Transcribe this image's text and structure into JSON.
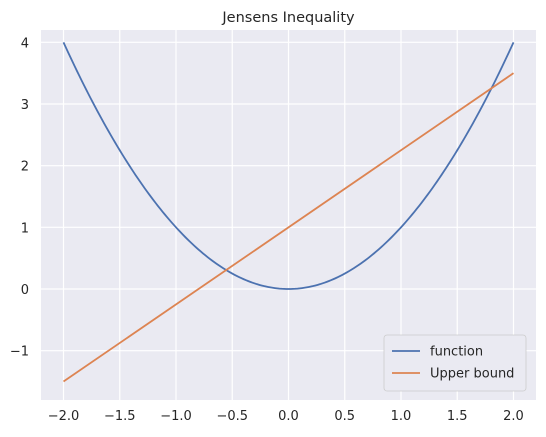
{
  "chart_data": {
    "type": "line",
    "title": "Jensens Inequality",
    "xlabel": "",
    "ylabel": "",
    "xlim": [
      -2.2,
      2.2
    ],
    "ylim": [
      -1.8,
      4.2
    ],
    "xticks": [
      -2.0,
      -1.5,
      -1.0,
      -0.5,
      0.0,
      0.5,
      1.0,
      1.5,
      2.0
    ],
    "xtick_labels": [
      "−2.0",
      "−1.5",
      "−1.0",
      "−0.5",
      "0.0",
      "0.5",
      "1.0",
      "1.5",
      "2.0"
    ],
    "yticks": [
      -1,
      0,
      1,
      2,
      3,
      4
    ],
    "ytick_labels": [
      "−1",
      "0",
      "1",
      "2",
      "3",
      "4"
    ],
    "grid": true,
    "background": "#eaeaf2",
    "legend_position": "lower-right",
    "series": [
      {
        "name": "function",
        "color": "#4c72b0",
        "x": [
          -2.0,
          -1.8,
          -1.6,
          -1.4,
          -1.2,
          -1.0,
          -0.8,
          -0.6,
          -0.4,
          -0.2,
          0.0,
          0.2,
          0.4,
          0.6,
          0.8,
          1.0,
          1.2,
          1.4,
          1.6,
          1.8,
          2.0
        ],
        "y": [
          4.0,
          3.24,
          2.56,
          1.96,
          1.44,
          1.0,
          0.64,
          0.36,
          0.16,
          0.04,
          0.0,
          0.04,
          0.16,
          0.36,
          0.64,
          1.0,
          1.44,
          1.96,
          2.56,
          3.24,
          4.0
        ]
      },
      {
        "name": "Upper bound",
        "color": "#dd8452",
        "x": [
          -2.0,
          2.0
        ],
        "y": [
          -1.5,
          3.5
        ]
      }
    ]
  }
}
